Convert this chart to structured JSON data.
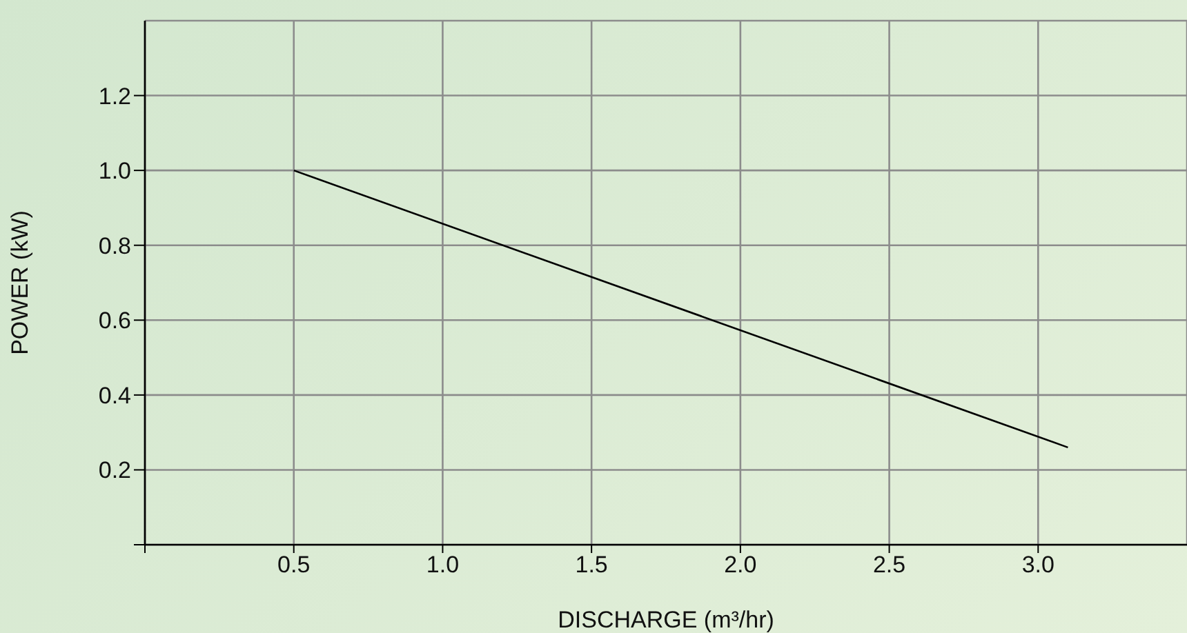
{
  "chart_data": {
    "type": "line",
    "xlabel": "DISCHARGE (m³/hr)",
    "ylabel": "POWER (kW)",
    "x": [
      0.5,
      3.1
    ],
    "series": [
      {
        "color": "#000000",
        "values": [
          1.0,
          0.26
        ]
      }
    ],
    "xlim": [
      0,
      3.5
    ],
    "ylim": [
      0,
      1.4
    ],
    "xticks": [
      {
        "value": 0,
        "label": null
      },
      0.5,
      {
        "value": 1,
        "label": "1.0"
      },
      1.5,
      {
        "value": 2,
        "label": "2.0"
      },
      2.5,
      {
        "value": 3,
        "label": "3.0"
      }
    ],
    "yticks": [
      {
        "value": 0,
        "label": null
      },
      0.2,
      0.4,
      0.6,
      0.8,
      {
        "value": 1,
        "label": "1.0"
      },
      1.2
    ],
    "grid": true,
    "marker": "none",
    "line_style": "solid"
  }
}
